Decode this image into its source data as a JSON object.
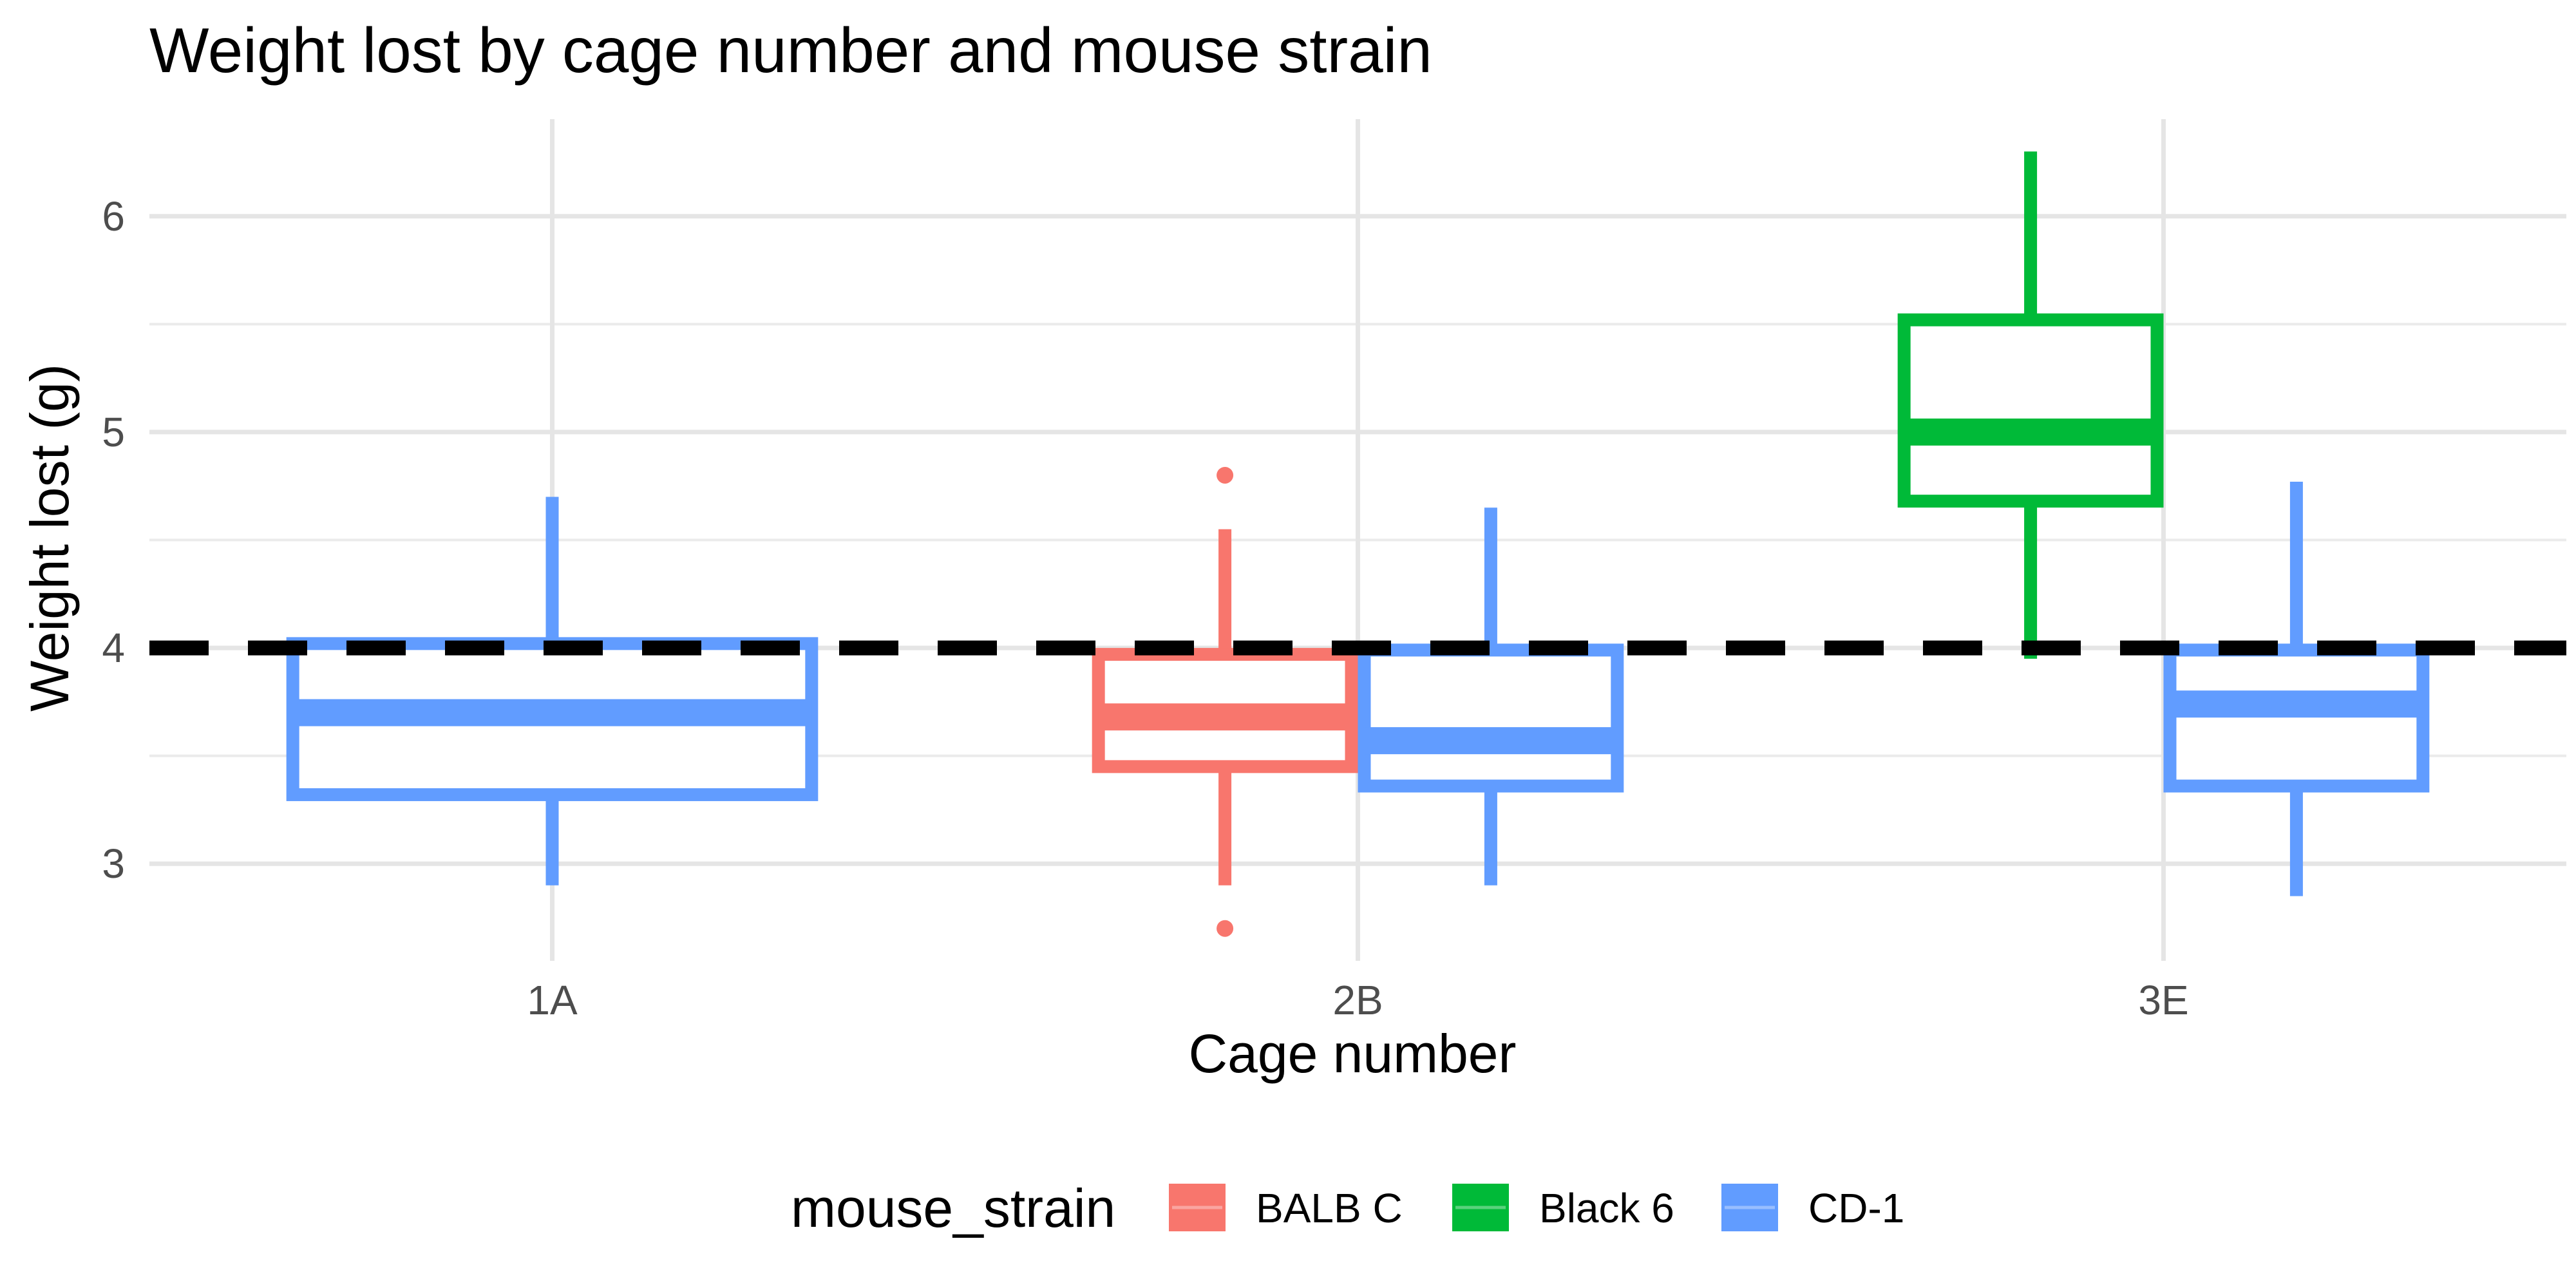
{
  "chart_data": {
    "type": "boxplot",
    "title": "Weight lost by cage number and mouse strain",
    "xlabel": "Cage number",
    "ylabel": "Weight lost (g)",
    "categories": [
      "1A",
      "2B",
      "3E"
    ],
    "ylim": [
      2.55,
      6.45
    ],
    "yticks": [
      3,
      4,
      5,
      6
    ],
    "ytick_labels": [
      "3",
      "4",
      "5",
      "6"
    ],
    "grid": true,
    "reference_line": {
      "y": 4,
      "style": "dashed",
      "color": "#000000"
    },
    "legend": {
      "title": "mouse_strain",
      "position": "bottom",
      "entries": [
        "BALB C",
        "Black 6",
        "CD-1"
      ]
    },
    "series": [
      {
        "name": "BALB C",
        "color": "#F8766D",
        "boxes": [
          {
            "category": "2B",
            "whisker_low": 2.9,
            "q1": 3.45,
            "median": 3.68,
            "q3": 3.97,
            "whisker_high": 4.55,
            "outliers": [
              4.8,
              2.7
            ]
          }
        ]
      },
      {
        "name": "Black 6",
        "color": "#00BA38",
        "boxes": [
          {
            "category": "3E",
            "whisker_low": 3.95,
            "q1": 4.68,
            "median": 5.0,
            "q3": 5.52,
            "whisker_high": 6.3,
            "outliers": []
          }
        ]
      },
      {
        "name": "CD-1",
        "color": "#619CFF",
        "boxes": [
          {
            "category": "1A",
            "whisker_low": 2.9,
            "q1": 3.32,
            "median": 3.7,
            "q3": 4.02,
            "whisker_high": 4.7,
            "outliers": []
          },
          {
            "category": "2B",
            "whisker_low": 2.9,
            "q1": 3.36,
            "median": 3.57,
            "q3": 3.99,
            "whisker_high": 4.65,
            "outliers": []
          },
          {
            "category": "3E",
            "whisker_low": 2.85,
            "q1": 3.36,
            "median": 3.74,
            "q3": 3.99,
            "whisker_high": 4.77,
            "outliers": []
          }
        ]
      }
    ]
  }
}
